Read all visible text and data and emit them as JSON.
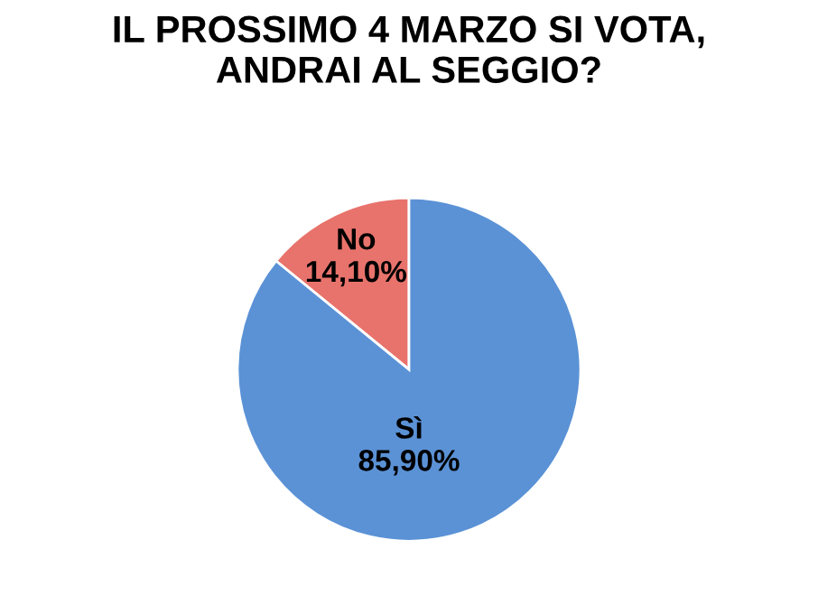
{
  "chart_data": {
    "type": "pie",
    "title": "IL PROSSIMO 4 MARZO SI VOTA,\nANDRAI AL SEGGIO?",
    "categories": [
      "No",
      "Sì"
    ],
    "values": [
      14.1,
      85.9
    ],
    "value_labels": [
      "14,10%",
      "85,90%"
    ],
    "colors": [
      "#e8736c",
      "#5b92d6"
    ],
    "legend": false
  }
}
